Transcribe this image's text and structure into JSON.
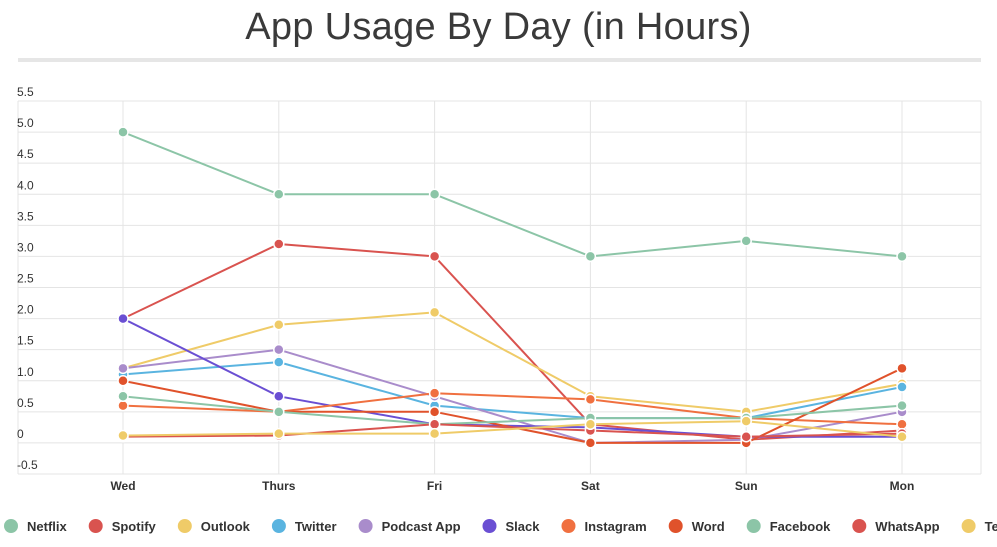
{
  "chart_data": {
    "type": "line",
    "title": "App Usage By Day (in Hours)",
    "xlabel": "",
    "ylabel": "",
    "categories": [
      "Wed",
      "Thurs",
      "Fri",
      "Sat",
      "Sun",
      "Mon"
    ],
    "ylim": [
      -0.5,
      5.5
    ],
    "yticks": [
      {
        "value": 5.5,
        "label": "5.5"
      },
      {
        "value": 5.0,
        "label": "5.0"
      },
      {
        "value": 4.5,
        "label": "4.5"
      },
      {
        "value": 4.0,
        "label": "4.0"
      },
      {
        "value": 3.5,
        "label": "3.5"
      },
      {
        "value": 3.0,
        "label": "3.0"
      },
      {
        "value": 2.5,
        "label": "2.5"
      },
      {
        "value": 2.0,
        "label": "2.0"
      },
      {
        "value": 1.5,
        "label": "1.5"
      },
      {
        "value": 1.0,
        "label": "1.0"
      },
      {
        "value": 0.5,
        "label": "0.5"
      },
      {
        "value": 0,
        "label": "0"
      },
      {
        "value": -0.5,
        "label": "-0.5"
      }
    ],
    "grid": true,
    "legend_position": "bottom",
    "series": [
      {
        "name": "Netflix",
        "color": "#8cc5a7",
        "values": [
          5.0,
          4.0,
          4.0,
          3.0,
          3.25,
          3.0
        ]
      },
      {
        "name": "Spotify",
        "color": "#d9534f",
        "values": [
          2.0,
          3.2,
          3.0,
          0.3,
          0.05,
          0.2
        ]
      },
      {
        "name": "Outlook",
        "color": "#efcb68",
        "values": [
          1.2,
          1.9,
          2.1,
          0.75,
          0.5,
          0.95
        ]
      },
      {
        "name": "Twitter",
        "color": "#5ab4e0",
        "values": [
          1.1,
          1.3,
          0.6,
          0.4,
          0.4,
          0.9
        ]
      },
      {
        "name": "Podcast App",
        "color": "#a98ccb",
        "values": [
          1.2,
          1.5,
          0.75,
          0.0,
          0.05,
          0.5
        ]
      },
      {
        "name": "Slack",
        "color": "#6a4fd3",
        "values": [
          2.0,
          0.75,
          0.3,
          0.25,
          0.1,
          0.1
        ]
      },
      {
        "name": "Instagram",
        "color": "#f07040",
        "values": [
          0.6,
          0.5,
          0.8,
          0.7,
          0.4,
          0.3
        ]
      },
      {
        "name": "Word",
        "color": "#e0522b",
        "values": [
          1.0,
          0.5,
          0.5,
          0.0,
          0.0,
          1.2
        ]
      },
      {
        "name": "Facebook",
        "color": "#8cc5a7",
        "values": [
          0.75,
          0.5,
          0.3,
          0.4,
          0.4,
          0.6
        ]
      },
      {
        "name": "WhatsApp",
        "color": "#d9534f",
        "values": [
          0.1,
          0.12,
          0.3,
          0.2,
          0.1,
          0.15
        ]
      },
      {
        "name": "Text",
        "color": "#efcb68",
        "values": [
          0.12,
          0.15,
          0.15,
          0.3,
          0.35,
          0.1
        ]
      }
    ]
  },
  "style": {
    "grid_color": "#e4e4e4",
    "marker_stroke": "#ffffff"
  }
}
